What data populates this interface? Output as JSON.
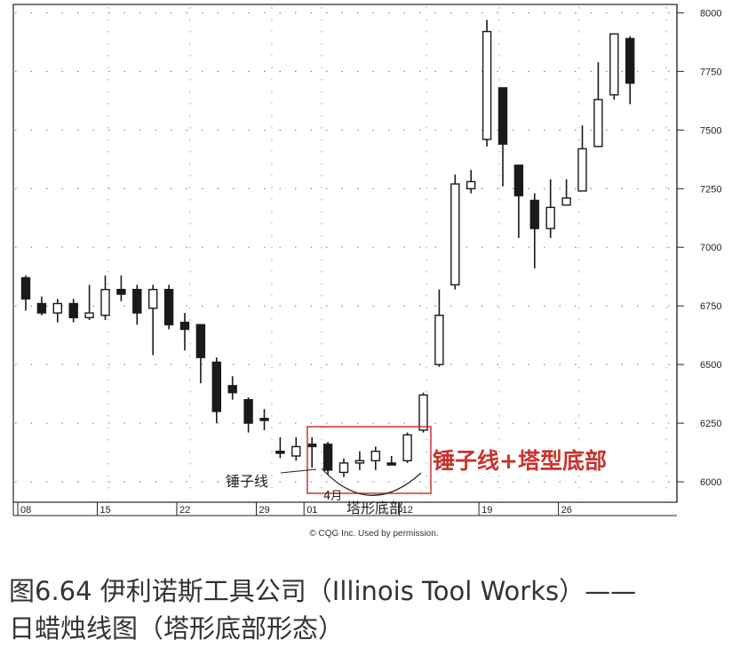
{
  "chart_data": {
    "type": "candlestick",
    "title": "",
    "y_ticks": [
      6000,
      6250,
      6500,
      6750,
      7000,
      7250,
      7500,
      7750,
      8000
    ],
    "ylim": [
      5950,
      8010
    ],
    "grid": true,
    "date_labels": [
      {
        "label": "08",
        "index": 0
      },
      {
        "label": "15",
        "index": 5
      },
      {
        "label": "22",
        "index": 10
      },
      {
        "label": "29",
        "index": 15
      },
      {
        "label": "01",
        "index": 18
      },
      {
        "label": "12",
        "index": 24
      },
      {
        "label": "19",
        "index": 29
      },
      {
        "label": "26",
        "index": 34
      }
    ],
    "month_marker": "4月",
    "candles": [
      {
        "o": 6870,
        "h": 6880,
        "l": 6730,
        "c": 6780
      },
      {
        "o": 6760,
        "h": 6790,
        "l": 6710,
        "c": 6720
      },
      {
        "o": 6720,
        "h": 6780,
        "l": 6680,
        "c": 6760
      },
      {
        "o": 6760,
        "h": 6780,
        "l": 6680,
        "c": 6700
      },
      {
        "o": 6700,
        "h": 6840,
        "l": 6690,
        "c": 6720
      },
      {
        "o": 6710,
        "h": 6880,
        "l": 6690,
        "c": 6820
      },
      {
        "o": 6820,
        "h": 6880,
        "l": 6770,
        "c": 6800
      },
      {
        "o": 6820,
        "h": 6840,
        "l": 6670,
        "c": 6720
      },
      {
        "o": 6740,
        "h": 6840,
        "l": 6540,
        "c": 6820
      },
      {
        "o": 6820,
        "h": 6840,
        "l": 6650,
        "c": 6670
      },
      {
        "o": 6680,
        "h": 6720,
        "l": 6560,
        "c": 6650
      },
      {
        "o": 6670,
        "h": 6670,
        "l": 6420,
        "c": 6530
      },
      {
        "o": 6510,
        "h": 6530,
        "l": 6250,
        "c": 6300
      },
      {
        "o": 6410,
        "h": 6450,
        "l": 6350,
        "c": 6380
      },
      {
        "o": 6350,
        "h": 6360,
        "l": 6210,
        "c": 6250
      },
      {
        "o": 6270,
        "h": 6310,
        "l": 6220,
        "c": 6270
      },
      {
        "o": 6130,
        "h": 6190,
        "l": 6100,
        "c": 6130
      },
      {
        "o": 6110,
        "h": 6190,
        "l": 6090,
        "c": 6150
      },
      {
        "o": 6160,
        "h": 6190,
        "l": 6060,
        "c": 6150
      },
      {
        "o": 6160,
        "h": 6170,
        "l": 6030,
        "c": 6050
      },
      {
        "o": 6040,
        "h": 6100,
        "l": 6020,
        "c": 6080
      },
      {
        "o": 6080,
        "h": 6130,
        "l": 6050,
        "c": 6090
      },
      {
        "o": 6090,
        "h": 6150,
        "l": 6050,
        "c": 6130
      },
      {
        "o": 6080,
        "h": 6110,
        "l": 6070,
        "c": 6080
      },
      {
        "o": 6090,
        "h": 6210,
        "l": 6080,
        "c": 6200
      },
      {
        "o": 6220,
        "h": 6380,
        "l": 6210,
        "c": 6370
      },
      {
        "o": 6500,
        "h": 6820,
        "l": 6490,
        "c": 6710
      },
      {
        "o": 6840,
        "h": 7310,
        "l": 6820,
        "c": 7270
      },
      {
        "o": 7250,
        "h": 7330,
        "l": 7230,
        "c": 7280
      },
      {
        "o": 7460,
        "h": 7970,
        "l": 7430,
        "c": 7920
      },
      {
        "o": 7680,
        "h": 7680,
        "l": 7260,
        "c": 7440
      },
      {
        "o": 7350,
        "h": 7350,
        "l": 7040,
        "c": 7220
      },
      {
        "o": 7200,
        "h": 7230,
        "l": 6910,
        "c": 7080
      },
      {
        "o": 7080,
        "h": 7290,
        "l": 7040,
        "c": 7170
      },
      {
        "o": 7180,
        "h": 7290,
        "l": 7180,
        "c": 7210
      },
      {
        "o": 7240,
        "h": 7520,
        "l": 7240,
        "c": 7420
      },
      {
        "o": 7430,
        "h": 7790,
        "l": 7430,
        "c": 7630
      },
      {
        "o": 7650,
        "h": 7910,
        "l": 7630,
        "c": 7910
      },
      {
        "o": 7890,
        "h": 7900,
        "l": 7610,
        "c": 7700
      }
    ],
    "annotations": {
      "hammer_label": "锤子线",
      "tower_label": "塔形底部",
      "pattern_label": "锤子线+塔型底部",
      "copyright": "© CQG Inc. Used by permission."
    }
  },
  "caption": {
    "line1": "图6.64 伊利诺斯工具公司（Illinois Tool Works）——",
    "line2": "日蜡烛线图（塔形底部形态）"
  },
  "colors": {
    "pattern_box": "#d0352f",
    "pattern_text": "#c8332c",
    "ink": "#1a1a1a"
  }
}
